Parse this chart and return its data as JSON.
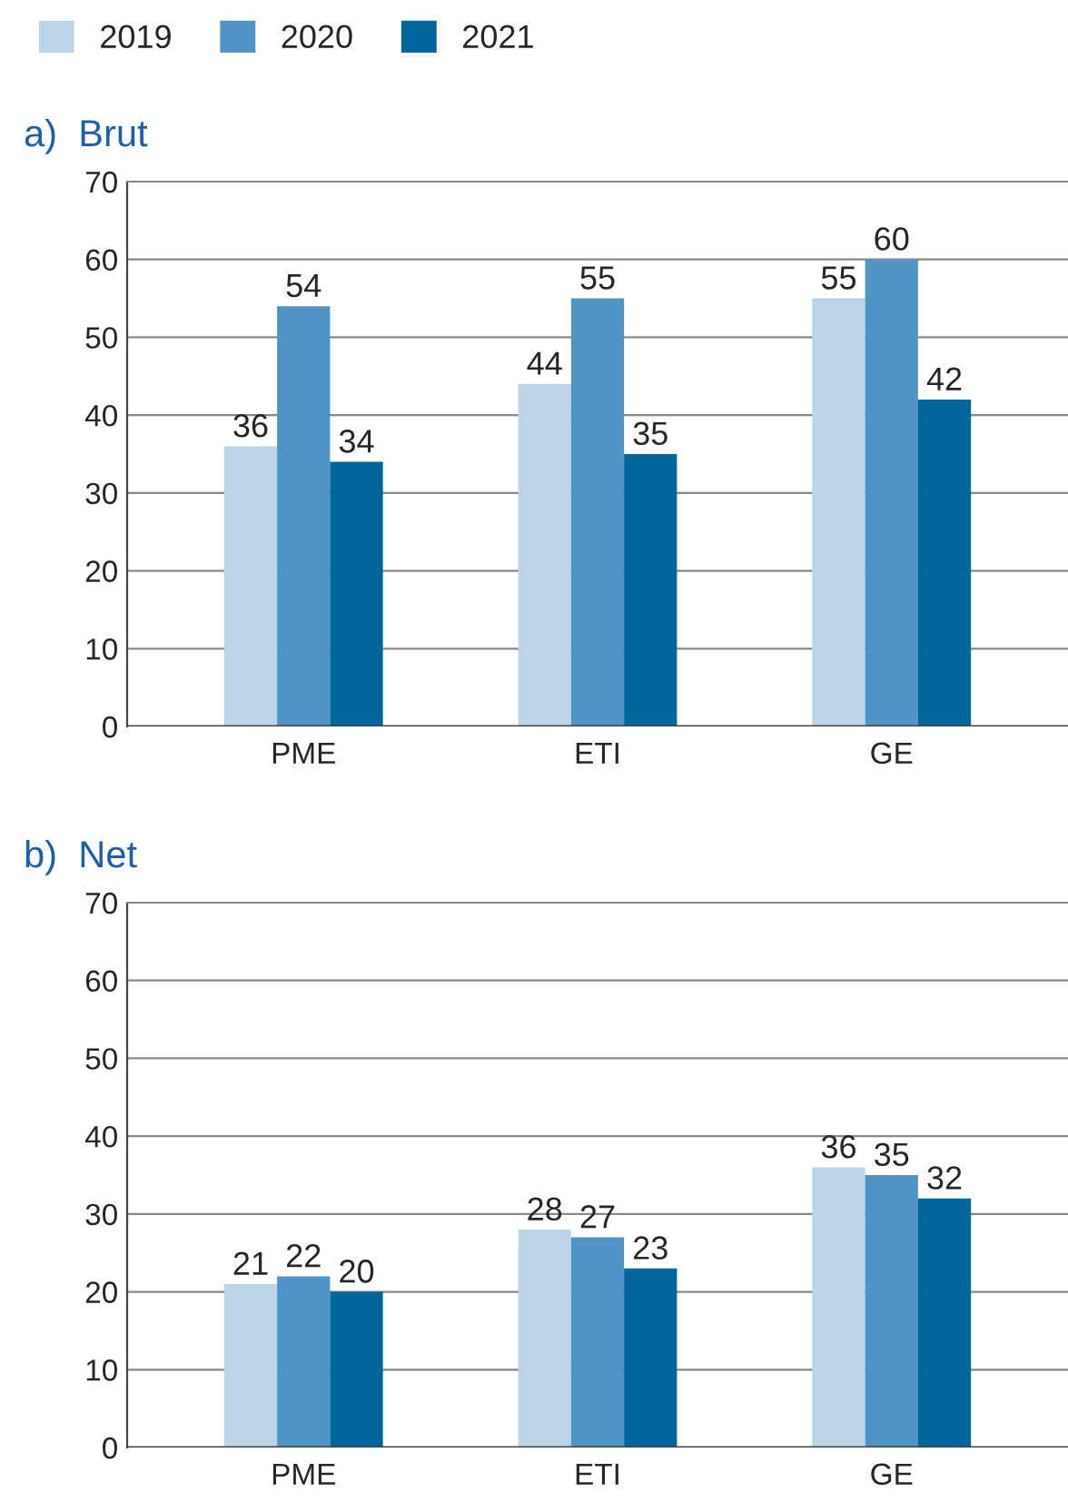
{
  "chart_data": [
    {
      "type": "bar",
      "title": "a)  Brut",
      "categories": [
        "PME",
        "ETI",
        "GE"
      ],
      "series": [
        {
          "name": "2019",
          "color": "#bcd4e8",
          "values": [
            36,
            44,
            55
          ]
        },
        {
          "name": "2020",
          "color": "#4f94c4",
          "values": [
            54,
            55,
            60
          ]
        },
        {
          "name": "2021",
          "color": "#00669b",
          "values": [
            34,
            35,
            42
          ]
        }
      ],
      "ylim": [
        0,
        70
      ],
      "yticks": [
        0,
        10,
        20,
        30,
        40,
        50,
        60,
        70
      ],
      "grid": "y",
      "data_labels": true,
      "legend": "top left"
    },
    {
      "type": "bar",
      "title": "b)  Net",
      "categories": [
        "PME",
        "ETI",
        "GE"
      ],
      "series": [
        {
          "color": "#bcd4e8",
          "values": [
            21,
            28,
            36
          ]
        },
        {
          "color": "#4f94c4",
          "values": [
            22,
            27,
            35
          ]
        },
        {
          "color": "#00669b",
          "values": [
            20,
            23,
            32
          ]
        }
      ],
      "ylim": [
        0,
        70
      ],
      "yticks": [
        0,
        10,
        20,
        30,
        40,
        50,
        60,
        70
      ],
      "grid": "y",
      "data_labels": true
    }
  ]
}
